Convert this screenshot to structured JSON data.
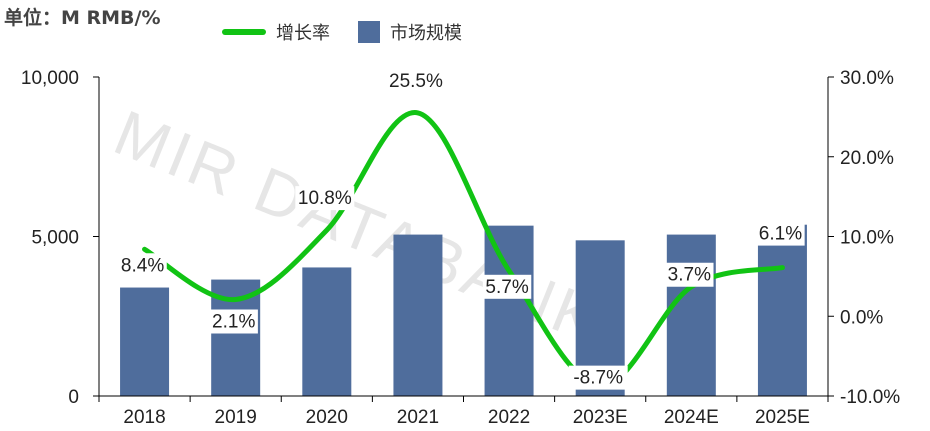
{
  "unit_label": "单位：M RMB/%",
  "watermark": "MIR DATABANK",
  "colors": {
    "bar": "#4f6d9c",
    "line": "#11c314",
    "axis": "#000000"
  },
  "chart_data": {
    "type": "bar",
    "categories": [
      "2018",
      "2019",
      "2020",
      "2021",
      "2022",
      "2023E",
      "2024E",
      "2025E"
    ],
    "series": [
      {
        "name": "市场规模",
        "type": "bar",
        "axis": "left",
        "values": [
          3400,
          3650,
          4030,
          5060,
          5340,
          4880,
          5060,
          5370
        ]
      },
      {
        "name": "增长率",
        "type": "line",
        "axis": "right",
        "values": [
          8.4,
          2.1,
          10.8,
          25.5,
          5.7,
          -8.7,
          3.7,
          6.1
        ],
        "labels": [
          "8.4%",
          "2.1%",
          "10.8%",
          "25.5%",
          "5.7%",
          "-8.7%",
          "3.7%",
          "6.1%"
        ]
      }
    ],
    "legend": [
      "增长率",
      "市场规模"
    ],
    "legend_position": "top",
    "y_left": {
      "ylim": [
        0,
        10000
      ],
      "ticks": [
        0,
        5000,
        10000
      ],
      "tick_labels": [
        "0",
        "5,000",
        "10,000"
      ]
    },
    "y_right": {
      "ylim": [
        -10,
        30
      ],
      "ticks": [
        -10,
        0,
        10,
        20,
        30
      ],
      "tick_labels": [
        "-10.0%",
        "0.0%",
        "10.0%",
        "20.0%",
        "30.0%"
      ]
    },
    "grid": false
  }
}
